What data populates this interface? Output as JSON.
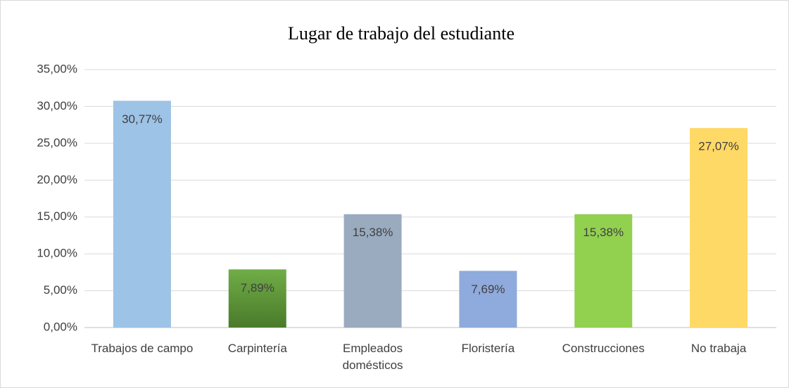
{
  "chart_data": {
    "type": "bar",
    "title": "Lugar de trabajo del estudiante",
    "categories": [
      "Trabajos de campo",
      "Carpintería",
      "Empleados domésticos",
      "Floristería",
      "Construcciones",
      "No trabaja"
    ],
    "values": [
      30.77,
      7.89,
      15.38,
      7.69,
      15.38,
      27.07
    ],
    "value_labels": [
      "30,77%",
      "7,89%",
      "15,38%",
      "7,69%",
      "15,38%",
      "27,07%"
    ],
    "colors": [
      "#9dc3e6",
      "#548235",
      "#9aabc0",
      "#8faadc",
      "#92d050",
      "#ffd966"
    ],
    "ylim": [
      0,
      35
    ],
    "yticks": [
      {
        "value": 0,
        "label": "0,00%"
      },
      {
        "value": 5,
        "label": "5,00%"
      },
      {
        "value": 10,
        "label": "10,00%"
      },
      {
        "value": 15,
        "label": "15,00%"
      },
      {
        "value": 20,
        "label": "20,00%"
      },
      {
        "value": 25,
        "label": "25,00%"
      },
      {
        "value": 30,
        "label": "30,00%"
      },
      {
        "value": 35,
        "label": "35,00%"
      }
    ],
    "grid": true
  }
}
